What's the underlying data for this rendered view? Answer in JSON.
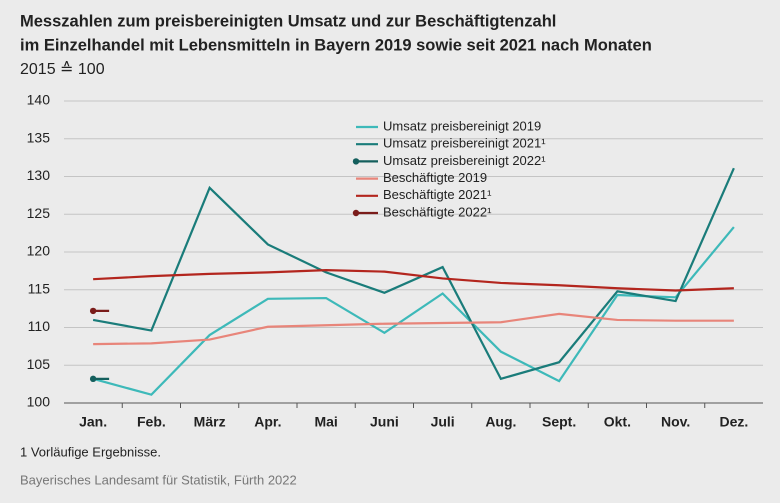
{
  "chart_data": {
    "type": "line",
    "title": [
      "Messzahlen zum preisbereinigten Umsatz und zur Beschäftigtenzahl",
      "im Einzelhandel mit Lebensmitteln in Bayern 2019 sowie seit 2021 nach Monaten"
    ],
    "subtitle": "2015 ≙ 100",
    "categories": [
      "Jan.",
      "Feb.",
      "März",
      "Apr.",
      "Mai",
      "Juni",
      "Juli",
      "Aug.",
      "Sept.",
      "Okt.",
      "Nov.",
      "Dez."
    ],
    "series": [
      {
        "name": "Umsatz preisbereinigt 2019",
        "color": "#3db9b9",
        "values": [
          103.2,
          101.1,
          109.0,
          113.8,
          113.9,
          109.3,
          114.5,
          106.8,
          102.9,
          114.3,
          114.0,
          123.3
        ]
      },
      {
        "name": "Umsatz preisbereinigt 2021¹",
        "color": "#1a7c7a",
        "values": [
          111.0,
          109.6,
          128.5,
          121.0,
          117.3,
          114.6,
          118.0,
          103.2,
          105.4,
          114.8,
          113.5,
          131.1
        ]
      },
      {
        "name": "Umsatz preisbereinigt 2022¹",
        "color": "#145f5d",
        "values": [
          103.2,
          null,
          null,
          null,
          null,
          null,
          null,
          null,
          null,
          null,
          null,
          null
        ]
      },
      {
        "name": "Beschäftigte 2019",
        "color": "#e8857a",
        "values": [
          107.8,
          107.9,
          108.4,
          110.1,
          110.3,
          110.5,
          110.6,
          110.7,
          111.8,
          111.0,
          110.9,
          110.9
        ]
      },
      {
        "name": "Beschäftigte 2021¹",
        "color": "#b3261e",
        "values": [
          116.4,
          116.8,
          117.1,
          117.3,
          117.6,
          117.4,
          116.5,
          115.9,
          115.6,
          115.2,
          114.9,
          115.2
        ]
      },
      {
        "name": "Beschäftigte 2022¹",
        "color": "#7a1c1a",
        "values": [
          112.2,
          null,
          null,
          null,
          null,
          null,
          null,
          null,
          null,
          null,
          null,
          null
        ]
      }
    ],
    "ylim": [
      100,
      140
    ],
    "yticks": [
      100,
      105,
      110,
      115,
      120,
      125,
      130,
      135,
      140
    ],
    "grid": true,
    "legend": "top",
    "footnote": "1  Vorläufige Ergebnisse.",
    "source": "Bayerisches Landesamt für Statistik, Fürth 2022"
  }
}
